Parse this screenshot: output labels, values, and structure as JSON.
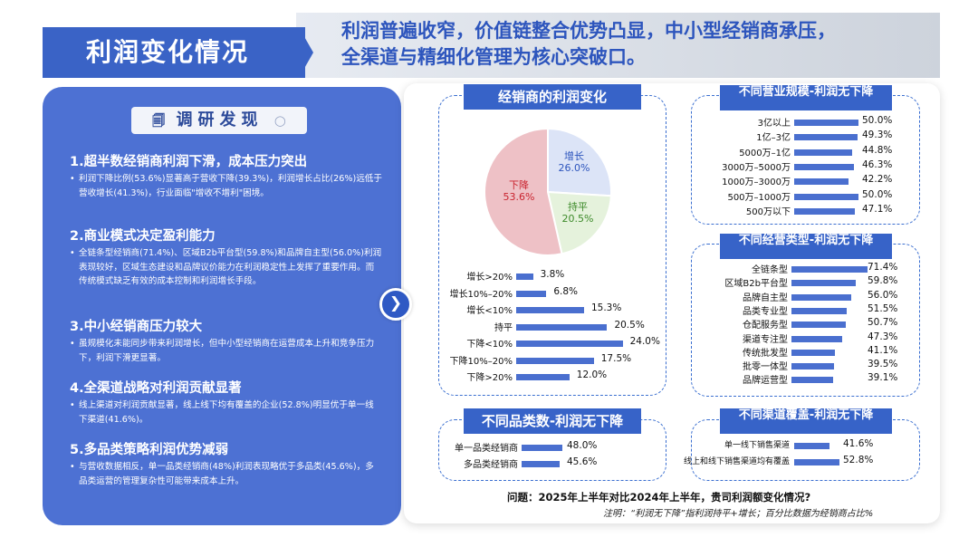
{
  "header": {
    "title": "利润变化情况",
    "headline_line1": "利润普遍收窄，价值链整合优势凸显，中小型经销商承压，",
    "headline_line2": "全渠道与精细化管理为核心突破口。"
  },
  "findings": {
    "title": "调研发现",
    "items": [
      {
        "heading": "1.超半数经销商利润下滑，成本压力突出",
        "text": "利润下降比例(53.6%)显著高于营收下降(39.3%)，利润增长占比(26%)远低于营收增长(41.3%)，行业面临\"增收不增利\"困境。"
      },
      {
        "heading": "2.商业模式决定盈利能力",
        "text": "全链条型经销商(71.4%)、区域B2b平台型(59.8%)和品牌自主型(56.0%)利润表现较好，区域生态建设和品牌议价能力在利润稳定性上发挥了重要作用。而传统模式缺乏有效的成本控制和利润增长手段。"
      },
      {
        "heading": "3.中小经销商压力较大",
        "text": "虽规模化未能同步带来利润增长，但中小型经销商在运营成本上升和竞争压力下，利润下滑更显著。"
      },
      {
        "heading": "4.全渠道战略对利润贡献显著",
        "text": "线上渠道对利润贡献显著，线上线下均有覆盖的企业(52.8%)明显优于单一线下渠道(41.6%)。"
      },
      {
        "heading": "5.多品类策略利润优势减弱",
        "text": "与营收数据相反，单一品类经销商(48%)利润表现略优于多品类(45.6%)，多品类运营的管理复杂性可能带来成本上升。"
      }
    ]
  },
  "arrow_icon": "chevron-right",
  "colors": {
    "primary": "#3a63c6",
    "bar": "#4a6fcf",
    "pie_up": "#dce4f7",
    "pie_flat": "#e5f2dc",
    "pie_down": "#eec1c6"
  },
  "chart_data": [
    {
      "type": "pie",
      "title": "经销商的利润变化",
      "slices": [
        {
          "name": "增长",
          "value": 26.0,
          "label": "26.0%",
          "color": "#dce4f7",
          "text_color": "#2d55bd"
        },
        {
          "name": "持平",
          "value": 20.5,
          "label": "20.5%",
          "color": "#e5f2dc",
          "text_color": "#3d8a2a"
        },
        {
          "name": "下降",
          "value": 53.6,
          "label": "53.6%",
          "color": "#eec1c6",
          "text_color": "#c9242f"
        }
      ]
    },
    {
      "type": "bar",
      "title": "",
      "categories": [
        "增长>20%",
        "增长10%–20%",
        "增长<10%",
        "持平",
        "下降<10%",
        "下降10%–20%",
        "下降>20%"
      ],
      "values": [
        3.8,
        6.8,
        15.3,
        20.5,
        24.0,
        17.5,
        12.0
      ],
      "labels": [
        "3.8%",
        "6.8%",
        "15.3%",
        "20.5%",
        "24.0%",
        "17.5%",
        "12.0%"
      ]
    },
    {
      "type": "bar",
      "title": "不同营业规模-利润无下降",
      "categories": [
        "3亿以上",
        "1亿–3亿",
        "5000万–1亿",
        "3000万–5000万",
        "1000万–3000万",
        "500万–1000万",
        "500万以下"
      ],
      "values": [
        50.0,
        49.3,
        44.8,
        46.3,
        42.2,
        50.0,
        47.1
      ],
      "labels": [
        "50.0%",
        "49.3%",
        "44.8%",
        "46.3%",
        "42.2%",
        "50.0%",
        "47.1%"
      ]
    },
    {
      "type": "bar",
      "title": "不同经营类型-利润无下降",
      "categories": [
        "全链条型",
        "区域B2b平台型",
        "品牌自主型",
        "品类专业型",
        "仓配服务型",
        "渠道专注型",
        "传统批发型",
        "批零一体型",
        "品牌运营型"
      ],
      "values": [
        71.4,
        59.8,
        56.0,
        51.5,
        50.7,
        47.3,
        41.1,
        39.5,
        39.1
      ],
      "labels": [
        "71.4%",
        "59.8%",
        "56.0%",
        "51.5%",
        "50.7%",
        "47.3%",
        "41.1%",
        "39.5%",
        "39.1%"
      ]
    },
    {
      "type": "bar",
      "title": "不同品类数-利润无下降",
      "categories": [
        "单一品类经销商",
        "多品类经销商"
      ],
      "values": [
        48.0,
        45.6
      ],
      "labels": [
        "48.0%",
        "45.6%"
      ]
    },
    {
      "type": "bar",
      "title": "不同渠道覆盖-利润无下降",
      "categories": [
        "单一线下销售渠道",
        "线上和线下销售渠道均有覆盖"
      ],
      "values": [
        41.6,
        52.8
      ],
      "labels": [
        "41.6%",
        "52.8%"
      ]
    }
  ],
  "footer": {
    "question": "问题：2025年上半年对比2024年上半年，贵司利润额变化情况?",
    "note": "注明：“利润无下降”指利润持平+增长；百分比数据为经销商占比%"
  }
}
